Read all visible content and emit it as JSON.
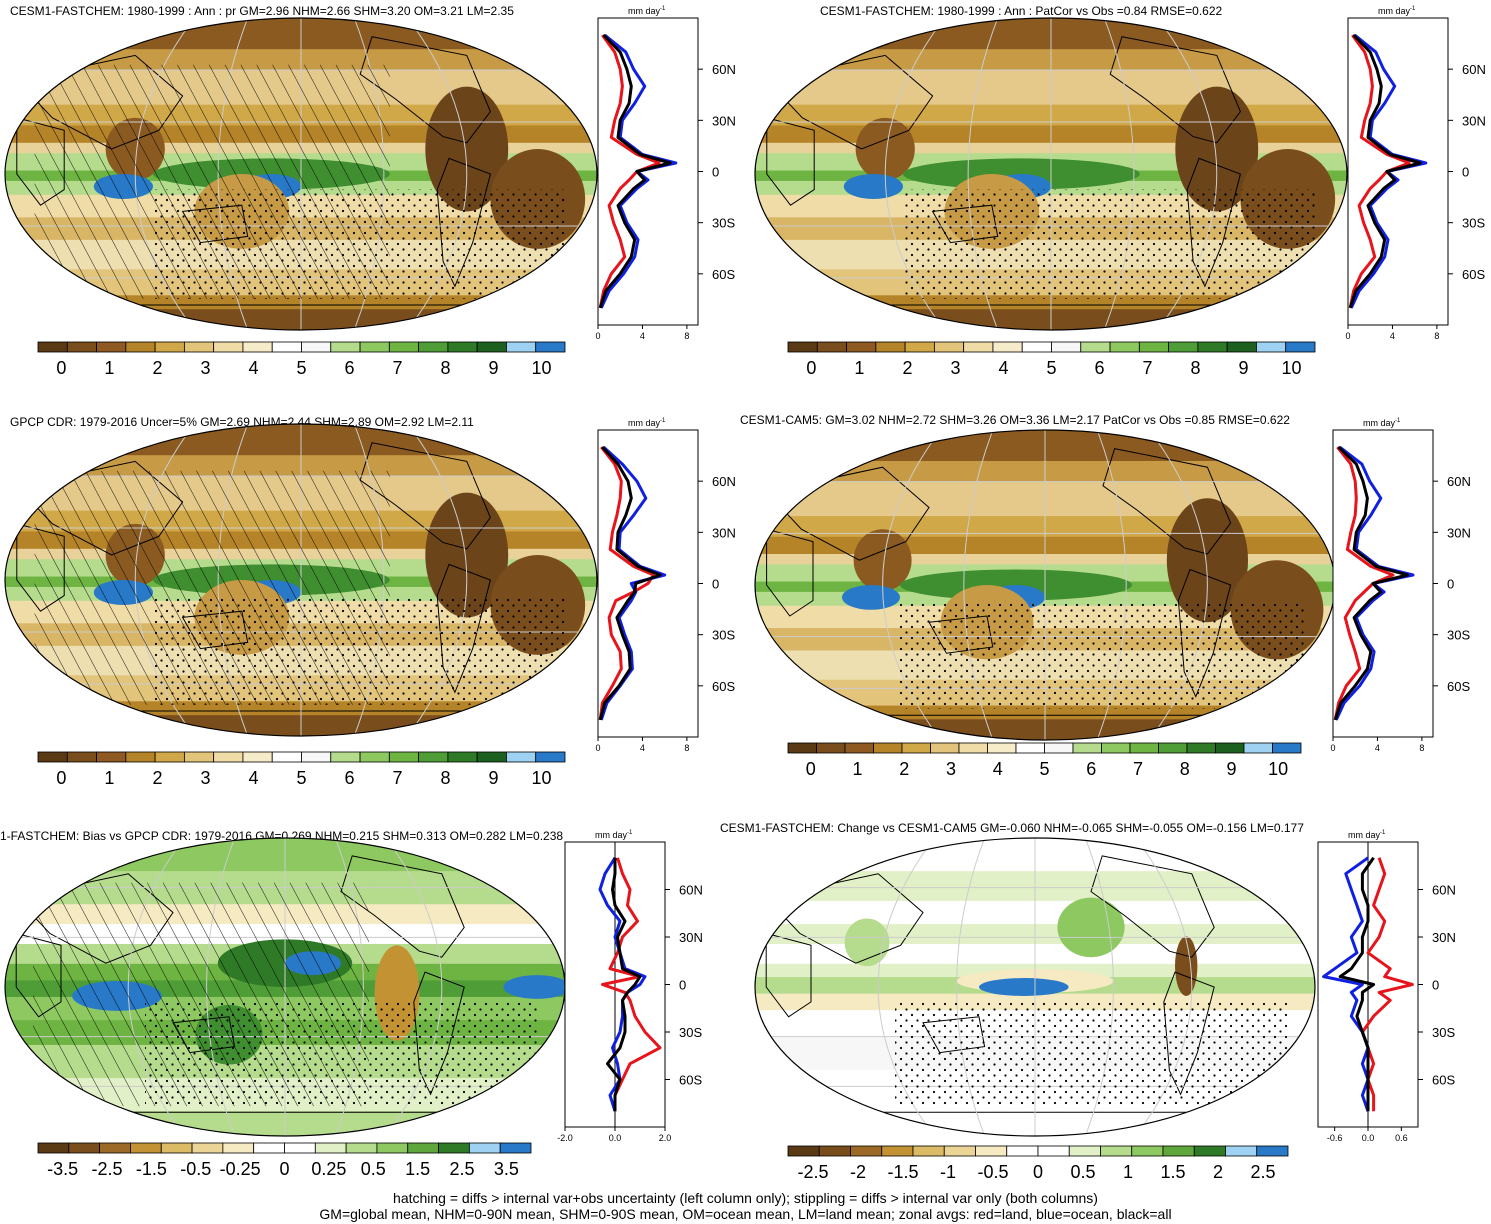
{
  "footer": {
    "line1": "hatching = diffs > internal var+obs uncertainty (left column only); stippling = diffs > internal var only (both columns)",
    "line2": "GM=global mean, NHM=0-90N mean, SHM=0-90S mean, OM=ocean mean, LM=land mean; zonal avgs: red=land, blue=ocean, black=all"
  },
  "colors": {
    "land": "#e8141c",
    "ocean": "#1020e0",
    "all": "#000000"
  },
  "lat_labels": [
    "60N",
    "30N",
    "0",
    "30S",
    "60S"
  ],
  "profile_unit": "mm day",
  "profile_unit_exp": "-1",
  "panels": [
    {
      "title": "CESM1-FASTCHEM: 1980-1999 : Ann : pr GM=2.96 NHM=2.66 SHM=3.20 OM=3.21 LM=2.35",
      "kind": "abs",
      "hatch": true,
      "stipple": true,
      "cbar_labels": [
        "0",
        "1",
        "2",
        "3",
        "4",
        "5",
        "6",
        "7",
        "8",
        "9",
        "10"
      ],
      "prof_ticks": [
        "0",
        "4",
        "8"
      ],
      "prof_range": [
        0,
        9
      ]
    },
    {
      "title": "CESM1-FASTCHEM: 1980-1999 : Ann : PatCor vs Obs =0.84 RMSE=0.622",
      "kind": "abs",
      "hatch": false,
      "stipple": true,
      "cbar_labels": [
        "0",
        "1",
        "2",
        "3",
        "4",
        "5",
        "6",
        "7",
        "8",
        "9",
        "10"
      ],
      "prof_ticks": [
        "0",
        "4",
        "8"
      ],
      "prof_range": [
        0,
        9
      ]
    },
    {
      "title": "GPCP CDR: 1979-2016 Uncer=5% GM=2.69 NHM=2.44 SHM=2.89 OM=2.92 LM=2.11",
      "kind": "abs",
      "hatch": true,
      "stipple": true,
      "cbar_labels": [
        "0",
        "1",
        "2",
        "3",
        "4",
        "5",
        "6",
        "7",
        "8",
        "9",
        "10"
      ],
      "prof_ticks": [
        "0",
        "4",
        "8"
      ],
      "prof_range": [
        0,
        9
      ]
    },
    {
      "title": "CESM1-CAM5: GM=3.02 NHM=2.72 SHM=3.26 OM=3.36 LM=2.17 PatCor vs Obs =0.85 RMSE=0.622",
      "kind": "abs",
      "hatch": false,
      "stipple": true,
      "cbar_labels": [
        "0",
        "1",
        "2",
        "3",
        "4",
        "5",
        "6",
        "7",
        "8",
        "9",
        "10"
      ],
      "prof_ticks": [
        "0",
        "4",
        "8"
      ],
      "prof_range": [
        0,
        9
      ]
    },
    {
      "title": "1-FASTCHEM: Bias vs GPCP CDR: 1979-2016 GM=0.269 NHM=0.215 SHM=0.313 OM=0.282 LM=0.238",
      "kind": "diff",
      "hatch": true,
      "stipple": true,
      "cbar_labels": [
        "-3.5",
        "-2.5",
        "-1.5",
        "-0.5",
        "-0.25",
        "0",
        "0.25",
        "0.5",
        "1.5",
        "2.5",
        "3.5"
      ],
      "prof_ticks": [
        "-2.0",
        "0.0",
        "2.0"
      ],
      "prof_range": [
        -2,
        2
      ]
    },
    {
      "title": "CESM1-FASTCHEM: Change vs CESM1-CAM5 GM=-0.060 NHM=-0.065 SHM=-0.055 OM=-0.156 LM=0.177",
      "kind": "diff2",
      "hatch": false,
      "stipple": true,
      "cbar_labels": [
        "-2.5",
        "-2",
        "-1.5",
        "-1",
        "-0.5",
        "0",
        "0.5",
        "1",
        "1.5",
        "2",
        "2.5"
      ],
      "prof_ticks": [
        "-0.6",
        "0.0",
        "0.6"
      ],
      "prof_range": [
        -0.9,
        0.9
      ]
    }
  ],
  "chart_data": [
    {
      "type": "heatmap",
      "title": "CESM1-FASTCHEM: 1980-1999 : Ann : pr GM=2.96 NHM=2.66 SHM=3.20 OM=3.21 LM=2.35",
      "colorbar": [
        "0",
        "1",
        "2",
        "3",
        "4",
        "5",
        "6",
        "7",
        "8",
        "9",
        "10"
      ],
      "zonal_mean": {
        "lat": [
          80,
          70,
          60,
          50,
          40,
          30,
          20,
          10,
          5,
          0,
          -5,
          -10,
          -20,
          -30,
          -40,
          -50,
          -60,
          -70,
          -80
        ],
        "series": [
          {
            "name": "land",
            "values": [
              0.4,
              1.5,
              2.0,
              2.2,
              2.0,
              1.5,
              1.2,
              3.5,
              5.5,
              3.5,
              2.8,
              2.0,
              1.0,
              1.4,
              2.0,
              2.4,
              1.2,
              0.5,
              0.2
            ]
          },
          {
            "name": "ocean",
            "values": [
              0.6,
              2.5,
              3.2,
              4.2,
              3.3,
              2.2,
              2.0,
              4.0,
              7.0,
              3.5,
              4.5,
              3.5,
              2.0,
              2.6,
              3.6,
              3.3,
              2.3,
              1.0,
              0.3
            ]
          },
          {
            "name": "all",
            "values": [
              0.5,
              2.0,
              2.6,
              3.0,
              2.8,
              2.0,
              1.8,
              3.8,
              6.5,
              3.5,
              4.2,
              3.2,
              1.8,
              2.4,
              3.3,
              3.0,
              2.0,
              0.7,
              0.2
            ]
          }
        ]
      }
    },
    {
      "type": "heatmap",
      "title": "CESM1-FASTCHEM: 1980-1999 : Ann : PatCor vs Obs =0.84 RMSE=0.622",
      "colorbar": [
        "0",
        "1",
        "2",
        "3",
        "4",
        "5",
        "6",
        "7",
        "8",
        "9",
        "10"
      ],
      "zonal_mean": {
        "lat": [
          80,
          70,
          60,
          50,
          40,
          30,
          20,
          10,
          5,
          0,
          -5,
          -10,
          -20,
          -30,
          -40,
          -50,
          -60,
          -70,
          -80
        ],
        "series": [
          {
            "name": "land",
            "values": [
              0.4,
              1.5,
              2.0,
              2.2,
              2.0,
              1.5,
              1.2,
              3.5,
              5.5,
              3.5,
              2.8,
              2.0,
              1.0,
              1.4,
              2.0,
              2.4,
              1.2,
              0.5,
              0.2
            ]
          },
          {
            "name": "ocean",
            "values": [
              0.6,
              2.5,
              3.2,
              4.2,
              3.3,
              2.2,
              2.0,
              4.0,
              7.0,
              3.5,
              4.5,
              3.5,
              2.0,
              2.6,
              3.6,
              3.3,
              2.3,
              1.0,
              0.3
            ]
          },
          {
            "name": "all",
            "values": [
              0.5,
              2.0,
              2.6,
              3.0,
              2.8,
              2.0,
              1.8,
              3.8,
              6.5,
              3.5,
              4.2,
              3.2,
              1.8,
              2.4,
              3.3,
              3.0,
              2.0,
              0.7,
              0.2
            ]
          }
        ]
      }
    },
    {
      "type": "heatmap",
      "title": "GPCP CDR: 1979-2016 Uncer=5% GM=2.69 NHM=2.44 SHM=2.89 OM=2.92 LM=2.11",
      "colorbar": [
        "0",
        "1",
        "2",
        "3",
        "4",
        "5",
        "6",
        "7",
        "8",
        "9",
        "10"
      ],
      "zonal_mean": {
        "lat": [
          80,
          70,
          60,
          50,
          40,
          30,
          20,
          10,
          5,
          0,
          -5,
          -10,
          -20,
          -30,
          -40,
          -50,
          -60,
          -70,
          -80
        ],
        "series": [
          {
            "name": "land",
            "values": [
              0.3,
              1.5,
              2.1,
              2.0,
              1.7,
              1.3,
              1.1,
              3.2,
              5.0,
              4.5,
              3.2,
              1.6,
              1.0,
              1.2,
              2.0,
              2.1,
              1.3,
              0.4,
              0.2
            ]
          },
          {
            "name": "ocean",
            "values": [
              0.5,
              2.2,
              3.5,
              4.3,
              3.2,
              2.0,
              1.9,
              3.8,
              6.0,
              3.0,
              3.4,
              3.0,
              1.9,
              2.4,
              3.0,
              3.1,
              2.0,
              0.8,
              0.3
            ]
          },
          {
            "name": "all",
            "values": [
              0.4,
              1.8,
              2.7,
              3.0,
              2.5,
              1.8,
              1.7,
              3.6,
              5.6,
              3.4,
              3.3,
              2.7,
              1.7,
              2.2,
              2.8,
              2.9,
              1.9,
              0.6,
              0.2
            ]
          }
        ]
      }
    },
    {
      "type": "heatmap",
      "title": "CESM1-CAM5: GM=3.02 NHM=2.72 SHM=3.26 OM=3.36 LM=2.17 PatCor vs Obs =0.85 RMSE=0.622",
      "colorbar": [
        "0",
        "1",
        "2",
        "3",
        "4",
        "5",
        "6",
        "7",
        "8",
        "9",
        "10"
      ],
      "zonal_mean": {
        "lat": [
          80,
          70,
          60,
          50,
          40,
          30,
          20,
          10,
          5,
          0,
          -5,
          -10,
          -20,
          -30,
          -40,
          -50,
          -60,
          -70,
          -80
        ],
        "series": [
          {
            "name": "land",
            "values": [
              0.4,
              1.6,
              2.0,
              2.1,
              2.0,
              1.6,
              1.3,
              3.4,
              5.4,
              3.6,
              2.8,
              2.0,
              1.1,
              1.5,
              2.0,
              2.4,
              1.2,
              0.5,
              0.2
            ]
          },
          {
            "name": "ocean",
            "values": [
              0.6,
              2.6,
              3.3,
              4.3,
              3.4,
              2.3,
              2.1,
              4.1,
              7.2,
              3.6,
              4.6,
              3.6,
              2.1,
              2.7,
              3.7,
              3.4,
              2.4,
              1.0,
              0.3
            ]
          },
          {
            "name": "all",
            "values": [
              0.5,
              2.1,
              2.7,
              3.1,
              2.9,
              2.1,
              1.9,
              3.9,
              6.7,
              3.6,
              4.3,
              3.3,
              1.9,
              2.5,
              3.4,
              3.1,
              2.0,
              0.7,
              0.2
            ]
          }
        ]
      }
    },
    {
      "type": "heatmap",
      "title": "1-FASTCHEM: Bias vs GPCP CDR: 1979-2016 GM=0.269 NHM=0.215 SHM=0.313 OM=0.282 LM=0.238",
      "colorbar": [
        "-3.5",
        "-2.5",
        "-1.5",
        "-0.5",
        "-0.25",
        "0",
        "0.25",
        "0.5",
        "1.5",
        "2.5",
        "3.5"
      ],
      "zonal_mean": {
        "lat": [
          80,
          70,
          60,
          50,
          40,
          30,
          20,
          10,
          5,
          0,
          -5,
          -10,
          -20,
          -30,
          -40,
          -50,
          -60,
          -70,
          -80
        ],
        "series": [
          {
            "name": "land",
            "values": [
              0.1,
              0.3,
              0.6,
              0.5,
              0.9,
              0.3,
              0.1,
              -0.2,
              1.0,
              -0.5,
              0.4,
              0.6,
              0.8,
              1.2,
              1.8,
              0.6,
              0.3,
              0.0,
              0.0
            ]
          },
          {
            "name": "ocean",
            "values": [
              0.0,
              -0.4,
              -0.6,
              -0.3,
              0.2,
              0.0,
              0.2,
              0.4,
              1.2,
              1.0,
              0.5,
              0.3,
              0.3,
              0.2,
              -0.1,
              0.1,
              0.2,
              -0.2,
              0.0
            ]
          },
          {
            "name": "all",
            "values": [
              0.0,
              0.0,
              -0.1,
              0.0,
              0.4,
              0.1,
              0.2,
              0.3,
              1.0,
              0.8,
              0.5,
              0.3,
              0.4,
              0.4,
              0.2,
              -0.3,
              0.2,
              0.0,
              0.0
            ]
          }
        ]
      }
    },
    {
      "type": "heatmap",
      "title": "CESM1-FASTCHEM: Change vs CESM1-CAM5 GM=-0.060 NHM=-0.065 SHM=-0.055 OM=-0.156 LM=0.177",
      "colorbar": [
        "-2.5",
        "-2",
        "-1.5",
        "-1",
        "-0.5",
        "0",
        "0.5",
        "1",
        "1.5",
        "2",
        "2.5"
      ],
      "zonal_mean": {
        "lat": [
          80,
          70,
          60,
          50,
          40,
          30,
          20,
          10,
          5,
          0,
          -5,
          -10,
          -20,
          -30,
          -40,
          -50,
          -60,
          -70,
          -80
        ],
        "series": [
          {
            "name": "land",
            "values": [
              0.2,
              0.3,
              0.2,
              0.1,
              0.3,
              0.2,
              0.0,
              0.4,
              0.3,
              0.8,
              0.2,
              0.4,
              0.1,
              -0.1,
              0.0,
              0.1,
              0.0,
              0.1,
              0.1
            ]
          },
          {
            "name": "ocean",
            "values": [
              0.0,
              -0.4,
              -0.3,
              -0.2,
              -0.1,
              -0.3,
              -0.2,
              -0.6,
              -0.8,
              -0.1,
              -0.3,
              -0.2,
              -0.3,
              -0.1,
              0.0,
              -0.1,
              0.0,
              -0.1,
              0.0
            ]
          },
          {
            "name": "all",
            "values": [
              0.1,
              -0.1,
              -0.1,
              0.0,
              0.0,
              -0.1,
              -0.1,
              -0.3,
              -0.5,
              0.1,
              -0.1,
              -0.1,
              -0.2,
              -0.1,
              0.0,
              0.0,
              0.0,
              0.0,
              0.0
            ]
          }
        ]
      }
    }
  ]
}
